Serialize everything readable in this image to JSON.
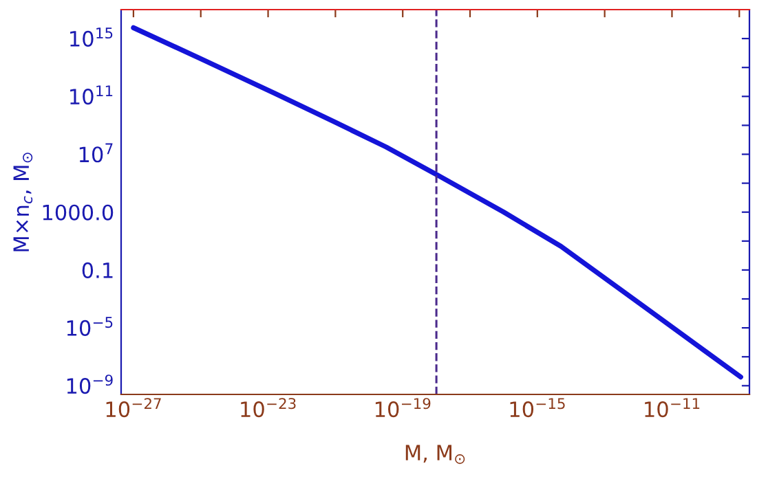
{
  "chart_data": {
    "type": "line",
    "xlabel": "M, M$_{⊙}$",
    "ylabel": "M×n$_{c}$, M$_{⊙}$",
    "log": "xy",
    "grid": false,
    "line_style": "solid",
    "marker": "none",
    "x": [
      1e-27,
      1e-25,
      1.6e-23,
      1e-21,
      3.2e-20,
      1e-18,
      1e-16,
      5e-15,
      1.4e-12,
      3.2e-11,
      1.1e-09
    ],
    "series": [
      {
        "color": "#1414d8",
        "values": [
          5600000000000000.0,
          40000000000000.0,
          160000000000.0,
          1600000000.0,
          32000000.0,
          400000.0,
          1000,
          4.4,
          0.00032,
          1.6e-06,
          4e-09
        ]
      }
    ],
    "xlim": [
      4.3e-28,
      2e-09
    ],
    "xticks": [
      {
        "value": 1e-27,
        "label": "10$^{−27}$"
      },
      {
        "value": 1e-25,
        "label": null
      },
      {
        "value": 1e-23,
        "label": "10$^{−23}$"
      },
      {
        "value": 1e-21,
        "label": null
      },
      {
        "value": 1e-19,
        "label": "10$^{−19}$"
      },
      {
        "value": 1e-17,
        "label": null
      },
      {
        "value": 1e-15,
        "label": "10$^{−15}$"
      },
      {
        "value": 1e-13,
        "label": null
      },
      {
        "value": 1e-11,
        "label": "10$^{−11}$"
      },
      {
        "value": 1e-09,
        "label": null
      }
    ],
    "ylim": [
      2.5e-10,
      1e+17
    ],
    "yticks": [
      {
        "value": 1e-09,
        "label": "10$^{−9}$"
      },
      {
        "value": 1e-07,
        "label": null
      },
      {
        "value": 1e-05,
        "label": "10$^{−5}$"
      },
      {
        "value": 0.001,
        "label": null
      },
      {
        "value": 0.1,
        "label": "0.1"
      },
      {
        "value": 10,
        "label": null
      },
      {
        "value": 1000,
        "label": "1000.0"
      },
      {
        "value": 100000.0,
        "label": null
      },
      {
        "value": 10000000.0,
        "label": "10$^{7}$"
      },
      {
        "value": 1000000000.0,
        "label": null
      },
      {
        "value": 100000000000.0,
        "label": "10$^{11}$"
      },
      {
        "value": 10000000000000.0,
        "label": null
      },
      {
        "value": 1000000000000000.0,
        "label": "10$^{15}$"
      }
    ],
    "ref_lines": [
      {
        "axis": "x",
        "value": 1e-18,
        "color": "#4b2a8c",
        "line_style": "dashed"
      }
    ]
  }
}
